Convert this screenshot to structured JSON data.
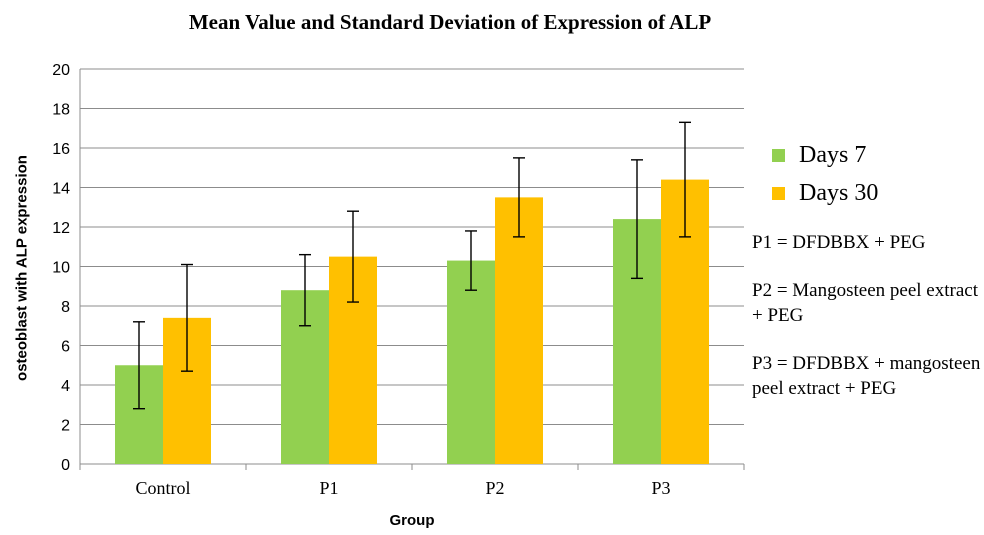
{
  "chart_data": {
    "type": "bar",
    "title": "Mean Value and Standard  Deviation of Expression of  ALP",
    "xlabel": "Group",
    "ylabel": "osteoblast with ALP expression",
    "categories": [
      "Control",
      "P1",
      "P2",
      "P3"
    ],
    "ylim": [
      0,
      20
    ],
    "yticks": [
      0,
      2,
      4,
      6,
      8,
      10,
      12,
      14,
      16,
      18,
      20
    ],
    "grid": true,
    "legend_position": "right",
    "series": [
      {
        "name": "Days 7",
        "color": "#92d050",
        "values": [
          5.0,
          8.8,
          10.3,
          12.4
        ],
        "errors": [
          2.2,
          1.8,
          1.5,
          3.0
        ]
      },
      {
        "name": "Days 30",
        "color": "#ffc000",
        "values": [
          7.4,
          10.5,
          13.5,
          14.4
        ],
        "errors": [
          2.7,
          2.3,
          2.0,
          2.9
        ]
      }
    ],
    "annotations": [
      "P1 = DFDBBX + PEG",
      "P2 = Mangosteen peel extract + PEG",
      "P3 = DFDBBX + mangosteen peel extract + PEG"
    ]
  }
}
